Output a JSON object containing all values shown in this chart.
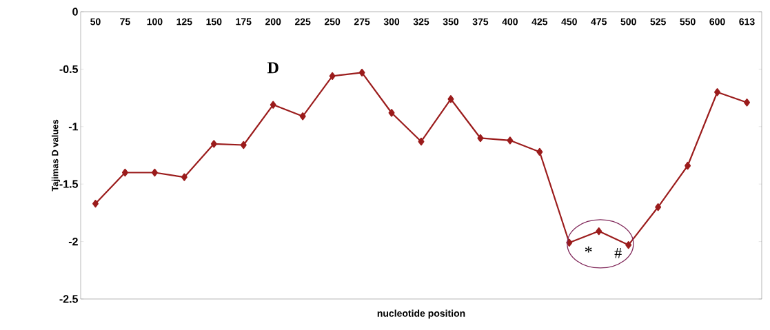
{
  "chart_data": {
    "type": "line",
    "xlabel": "nucleotide position",
    "ylabel": "Tajimas D values",
    "categories": [
      "50",
      "75",
      "100",
      "125",
      "150",
      "175",
      "200",
      "225",
      "250",
      "275",
      "300",
      "325",
      "350",
      "375",
      "400",
      "425",
      "450",
      "475",
      "500",
      "525",
      "550",
      "600",
      "613"
    ],
    "series": [
      {
        "color": "#9b1c1c",
        "values": [
          -1.67,
          -1.4,
          -1.4,
          -1.44,
          -1.15,
          -1.16,
          -0.81,
          -0.91,
          -0.56,
          -0.53,
          -0.88,
          -1.13,
          -0.76,
          -1.1,
          -1.12,
          -1.22,
          -2.01,
          -1.91,
          -2.03,
          -1.7,
          -1.34,
          -0.7,
          -0.79
        ]
      }
    ],
    "ylim": [
      -2.5,
      0
    ],
    "yticks": [
      -2.5,
      -2,
      -1.5,
      -1,
      -0.5,
      0
    ],
    "marker": "diamond",
    "line_style": "solid",
    "grid": false,
    "annotations": [
      "D",
      "*",
      "#"
    ]
  }
}
